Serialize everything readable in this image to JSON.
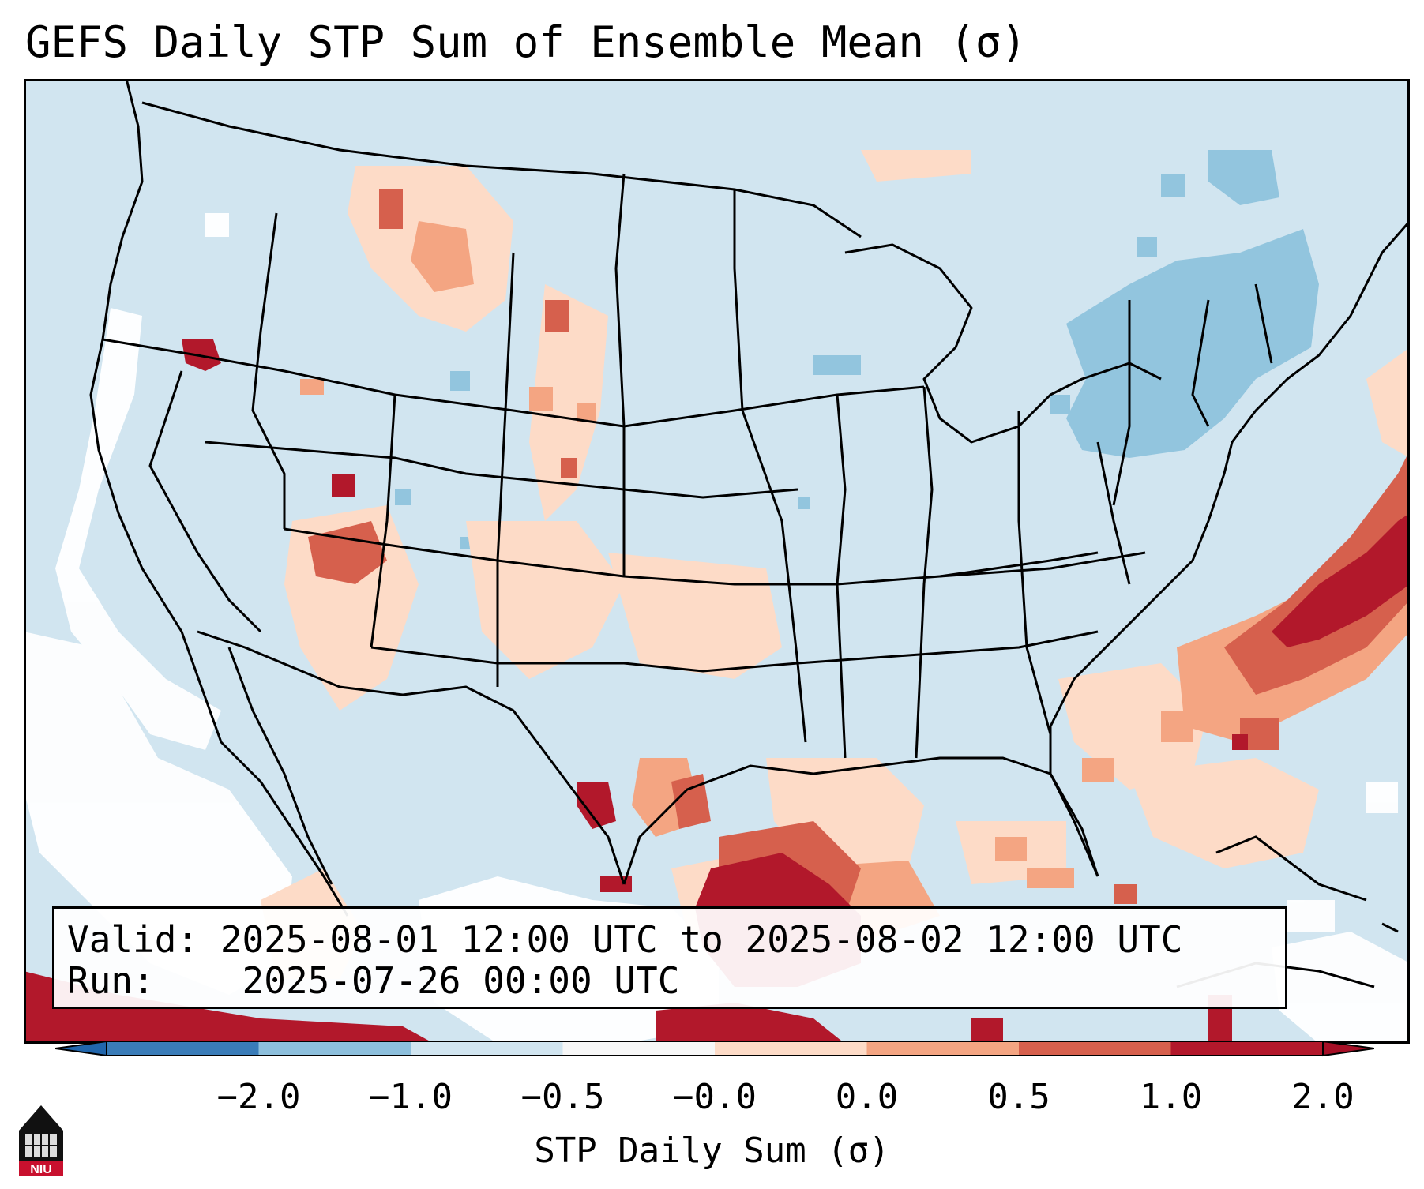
{
  "title": "GEFS Daily STP Sum of Ensemble Mean (σ)",
  "info": {
    "valid_line": "Valid: 2025-08-01 12:00 UTC to 2025-08-02 12:00 UTC",
    "run_line": "Run:    2025-07-26 00:00 UTC"
  },
  "colorbar": {
    "label": "STP Daily Sum (σ)",
    "ticks": [
      "−2.0",
      "−1.0",
      "−0.5",
      "−0.0",
      "0.0",
      "0.5",
      "1.0",
      "2.0"
    ],
    "colors": [
      "#3a7cb8",
      "#8dbfdc",
      "#d1e5f0",
      "#f7f7f7",
      "#fddbc7",
      "#f4a582",
      "#d6604d",
      "#b2182b"
    ],
    "under_color": "#2166ac",
    "over_color": "#a50f26"
  },
  "map_colors": {
    "background": "#d1e5f0",
    "neutral": "#ffffff",
    "light_blue": "#92c5de",
    "light_red": "#fddbc7",
    "mid_red": "#f4a582",
    "red": "#d6604d",
    "dark_red": "#b2182b"
  },
  "logo": {
    "text": "NIU",
    "name": "Northern Illinois University"
  }
}
